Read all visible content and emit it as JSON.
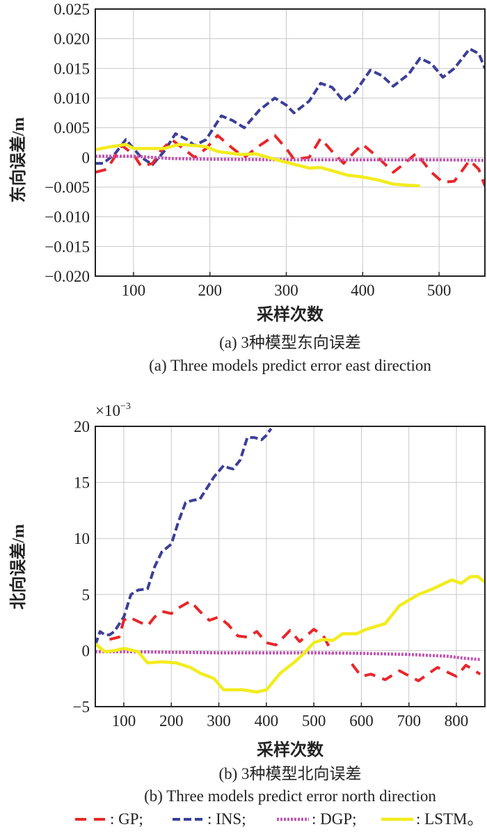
{
  "colors": {
    "GP": "#e8262a",
    "INS": "#3b3f98",
    "DGP": "#c455b4",
    "LSTM": "#f2ec1e"
  },
  "legend": [
    {
      "key": "GP",
      "label": ": GP;"
    },
    {
      "key": "INS",
      "label": ": INS;"
    },
    {
      "key": "DGP",
      "label": ": DGP;"
    },
    {
      "key": "LSTM",
      "label": ": LSTM。"
    }
  ],
  "chart_data": [
    {
      "type": "line",
      "title": "",
      "caption_cn": "(a) 3种模型东向误差",
      "caption_en": "(a) Three models predict error east direction",
      "xlabel": "采样次数",
      "ylabel": "东向误差/m",
      "xlim": [
        50,
        560
      ],
      "ylim": [
        -0.02,
        0.025
      ],
      "xticks": [
        100,
        200,
        300,
        400,
        500
      ],
      "xtick_labels": [
        "100",
        "200",
        "300",
        "400",
        "500"
      ],
      "yticks": [
        0.025,
        0.02,
        0.015,
        0.01,
        0.005,
        0,
        -0.005,
        -0.01,
        -0.015,
        -0.02
      ],
      "ytick_labels": [
        "0.025",
        "0.020",
        "0.015",
        "0.010",
        "0.005",
        "0",
        "−0.005",
        "−0.010",
        "−0.015",
        "−0.020"
      ],
      "exponent_label": "",
      "grid": true,
      "series": [
        {
          "name": "INS",
          "x": [
            50,
            60,
            75,
            90,
            110,
            125,
            140,
            155,
            170,
            180,
            195,
            215,
            230,
            245,
            265,
            285,
            300,
            310,
            330,
            345,
            360,
            375,
            390,
            410,
            425,
            440,
            460,
            475,
            490,
            505,
            520,
            540,
            552,
            560
          ],
          "y": [
            -0.001,
            -0.001,
            0.0005,
            0.003,
            0.0,
            -0.0012,
            0.001,
            0.004,
            0.003,
            0.002,
            0.003,
            0.007,
            0.0062,
            0.005,
            0.008,
            0.01,
            0.0088,
            0.0075,
            0.0095,
            0.0125,
            0.0118,
            0.0095,
            0.011,
            0.0147,
            0.0138,
            0.012,
            0.014,
            0.0167,
            0.0158,
            0.0135,
            0.015,
            0.0183,
            0.0175,
            0.015
          ]
        },
        {
          "name": "GP",
          "x": [
            50,
            65,
            85,
            100,
            110,
            125,
            135,
            150,
            165,
            180,
            195,
            210,
            230,
            245,
            265,
            285,
            300,
            310,
            330,
            345,
            360,
            375,
            390,
            400,
            420,
            440,
            455,
            470,
            490,
            505,
            520,
            540,
            552,
            560
          ],
          "y": [
            -0.0025,
            -0.002,
            0.002,
            0.0005,
            -0.0015,
            -0.001,
            0.001,
            0.003,
            0.0015,
            0.0,
            0.0015,
            0.0037,
            0.0015,
            0.0,
            0.002,
            0.0037,
            0.0015,
            -0.0003,
            0.0,
            0.0032,
            0.001,
            -0.001,
            0.001,
            0.0022,
            0.0,
            -0.0025,
            -0.001,
            0.0007,
            -0.0025,
            -0.0042,
            -0.004,
            -0.0005,
            -0.002,
            -0.0048
          ]
        },
        {
          "name": "DGP",
          "x": [
            50,
            100,
            150,
            200,
            300,
            400,
            500,
            560
          ],
          "y": [
            0.0002,
            0.0002,
            -0.0002,
            -0.0003,
            -0.0004,
            -0.0004,
            -0.0004,
            -0.0005
          ]
        },
        {
          "name": "LSTM",
          "x": [
            50,
            70,
            90,
            100,
            120,
            140,
            160,
            180,
            195,
            210,
            240,
            260,
            290,
            330,
            345,
            380,
            400,
            420,
            440,
            460,
            475
          ],
          "y": [
            0.0013,
            0.0018,
            0.0022,
            0.0015,
            0.0015,
            0.0015,
            0.0022,
            0.002,
            0.0018,
            0.001,
            0.0005,
            0.0006,
            -0.0005,
            -0.0018,
            -0.0017,
            -0.003,
            -0.0033,
            -0.0038,
            -0.0045,
            -0.0047,
            -0.0048
          ]
        }
      ]
    },
    {
      "type": "line",
      "title": "",
      "caption_cn": "(b) 3种模型北向误差",
      "caption_en": "(b) Three models predict error north direction",
      "xlabel": "采样次数",
      "ylabel": "北向误差/m",
      "xlim": [
        40,
        860
      ],
      "ylim": [
        -5,
        20
      ],
      "y_scale_factor": 0.001,
      "xticks": [
        100,
        200,
        300,
        400,
        500,
        600,
        700,
        800
      ],
      "xtick_labels": [
        "100",
        "200",
        "300",
        "400",
        "500",
        "600",
        "700",
        "800"
      ],
      "yticks": [
        20,
        15,
        10,
        5,
        0,
        -5
      ],
      "ytick_labels": [
        "20",
        "15",
        "10",
        "5",
        "0",
        "−5"
      ],
      "exponent_label": "×10",
      "exponent_power": "−3",
      "grid": true,
      "series": [
        {
          "name": "INS",
          "x": [
            40,
            50,
            60,
            70,
            80,
            100,
            115,
            130,
            150,
            165,
            180,
            200,
            215,
            230,
            245,
            260,
            275,
            290,
            310,
            320,
            330,
            345,
            360,
            375,
            390,
            400,
            410
          ],
          "y": [
            0.5,
            1.7,
            1.4,
            1.4,
            1.7,
            3.0,
            5.0,
            5.4,
            5.5,
            7.5,
            8.8,
            9.5,
            11.5,
            13.2,
            13.4,
            13.5,
            14.5,
            15.5,
            16.5,
            16.3,
            16.2,
            17.0,
            19.0,
            19.0,
            18.8,
            19.2,
            19.8
          ]
        },
        {
          "name": "GP",
          "x": [
            70,
            90,
            100,
            110,
            130,
            150,
            165,
            180,
            200,
            215,
            240,
            260,
            280,
            300,
            320,
            340,
            360,
            380,
            400,
            420,
            450,
            470,
            500,
            520,
            540,
            560,
            580,
            600,
            620,
            650,
            680,
            720,
            760,
            800,
            820,
            850
          ],
          "y": [
            1.0,
            1.2,
            2.7,
            3.0,
            2.6,
            2.2,
            3.0,
            3.5,
            3.3,
            3.8,
            4.4,
            3.5,
            2.7,
            3.0,
            2.3,
            1.3,
            1.2,
            1.7,
            0.7,
            0.5,
            1.8,
            0.8,
            1.9,
            1.3,
            -0.3,
            null,
            -1.2,
            -2.3,
            -2.1,
            -2.6,
            -1.8,
            -2.7,
            -1.5,
            -2.3,
            -1.3,
            -2.1
          ]
        },
        {
          "name": "DGP",
          "x": [
            40,
            100,
            200,
            300,
            400,
            500,
            600,
            700,
            780,
            820,
            850
          ],
          "y": [
            -0.1,
            -0.1,
            -0.15,
            -0.2,
            -0.2,
            -0.2,
            -0.25,
            -0.35,
            -0.5,
            -0.7,
            -0.8
          ]
        },
        {
          "name": "LSTM",
          "x": [
            40,
            60,
            80,
            100,
            130,
            150,
            180,
            210,
            240,
            260,
            290,
            310,
            330,
            350,
            380,
            400,
            430,
            460,
            480,
            500,
            520,
            540,
            560,
            590,
            610,
            650,
            680,
            720,
            750,
            790,
            810,
            830,
            845,
            860
          ],
          "y": [
            0.6,
            -0.1,
            0.0,
            0.2,
            -0.1,
            -1.1,
            -1.0,
            -1.1,
            -1.5,
            -2.0,
            -2.5,
            -3.5,
            -3.5,
            -3.5,
            -3.7,
            -3.5,
            -2.0,
            -1.0,
            -0.2,
            0.7,
            1.0,
            0.9,
            1.5,
            1.5,
            1.9,
            2.4,
            4.0,
            5.0,
            5.5,
            6.3,
            6.0,
            6.6,
            6.6,
            6.1
          ]
        }
      ]
    }
  ]
}
